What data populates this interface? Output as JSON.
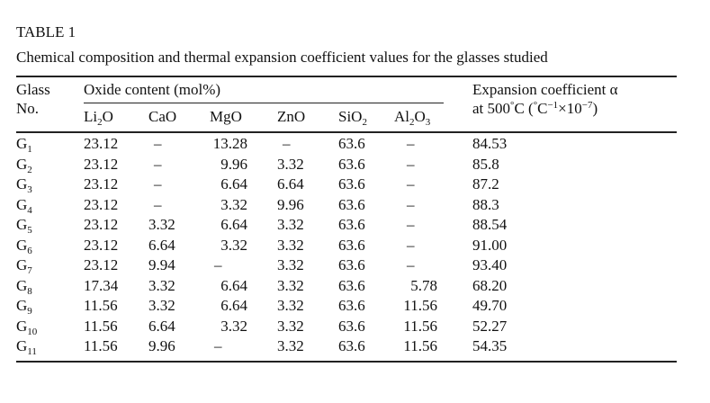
{
  "table_label": "TABLE 1",
  "caption": "Chemical composition and thermal expansion coefficient values for the glasses studied",
  "header": {
    "glass": "Glass",
    "no": "No.",
    "oxide_group": "Oxide content (mol%)",
    "columns": [
      {
        "base": "Li",
        "sub": "2",
        "tail": "O"
      },
      {
        "base": "CaO",
        "sub": "",
        "tail": ""
      },
      {
        "base": "MgO",
        "sub": "",
        "tail": ""
      },
      {
        "base": "ZnO",
        "sub": "",
        "tail": ""
      },
      {
        "base": "SiO",
        "sub": "2",
        "tail": ""
      },
      {
        "base": "Al",
        "sub": "2",
        "tail": "O",
        "sub2": "3"
      }
    ],
    "expansion_line1": "Expansion coefficient α",
    "expansion_line2_a": "at 500",
    "expansion_deg": "°",
    "expansion_line2_b": "C (",
    "expansion_deg2": "°",
    "expansion_unit": "C",
    "expansion_exp1": "−1",
    "expansion_times": "×10",
    "expansion_exp2": "−7",
    "expansion_close": ")"
  },
  "rows": [
    {
      "g": "G",
      "n": "1",
      "li2o": "23.12",
      "cao": "–",
      "mgo": "13.28",
      "zno": "–",
      "sio2": "63.6",
      "al2o3": "–",
      "alpha": "84.53"
    },
    {
      "g": "G",
      "n": "2",
      "li2o": "23.12",
      "cao": "–",
      "mgo": "9.96",
      "zno": "3.32",
      "sio2": "63.6",
      "al2o3": "–",
      "alpha": "85.8"
    },
    {
      "g": "G",
      "n": "3",
      "li2o": "23.12",
      "cao": "–",
      "mgo": "6.64",
      "zno": "6.64",
      "sio2": "63.6",
      "al2o3": "–",
      "alpha": "87.2"
    },
    {
      "g": "G",
      "n": "4",
      "li2o": "23.12",
      "cao": "–",
      "mgo": "3.32",
      "zno": "9.96",
      "sio2": "63.6",
      "al2o3": "–",
      "alpha": "88.3"
    },
    {
      "g": "G",
      "n": "5",
      "li2o": "23.12",
      "cao": "3.32",
      "mgo": "6.64",
      "zno": "3.32",
      "sio2": "63.6",
      "al2o3": "–",
      "alpha": "88.54"
    },
    {
      "g": "G",
      "n": "6",
      "li2o": "23.12",
      "cao": "6.64",
      "mgo": "3.32",
      "zno": "3.32",
      "sio2": "63.6",
      "al2o3": "–",
      "alpha": "91.00"
    },
    {
      "g": "G",
      "n": "7",
      "li2o": "23.12",
      "cao": "9.94",
      "mgo": "–",
      "zno": "3.32",
      "sio2": "63.6",
      "al2o3": "–",
      "alpha": "93.40"
    },
    {
      "g": "G",
      "n": "8",
      "li2o": "17.34",
      "cao": "3.32",
      "mgo": "6.64",
      "zno": "3.32",
      "sio2": "63.6",
      "al2o3": "5.78",
      "alpha": "68.20"
    },
    {
      "g": "G",
      "n": "9",
      "li2o": "11.56",
      "cao": "3.32",
      "mgo": "6.64",
      "zno": "3.32",
      "sio2": "63.6",
      "al2o3": "11.56",
      "alpha": "49.70"
    },
    {
      "g": "G",
      "n": "10",
      "li2o": "11.56",
      "cao": "6.64",
      "mgo": "3.32",
      "zno": "3.32",
      "sio2": "63.6",
      "al2o3": "11.56",
      "alpha": "52.27"
    },
    {
      "g": "G",
      "n": "11",
      "li2o": "11.56",
      "cao": "9.96",
      "mgo": "–",
      "zno": "3.32",
      "sio2": "63.6",
      "al2o3": "11.56",
      "alpha": "54.35"
    }
  ]
}
